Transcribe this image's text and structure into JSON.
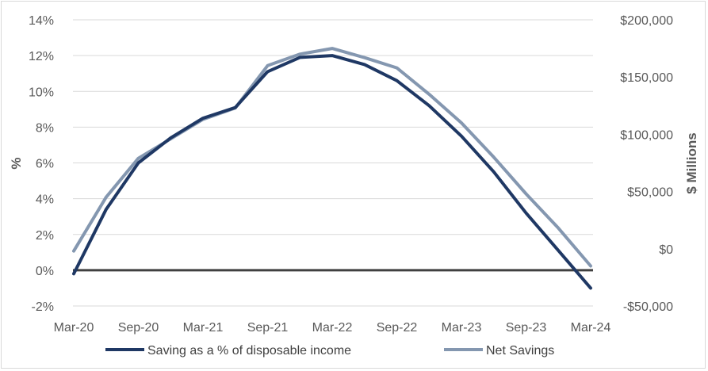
{
  "chart_data": {
    "type": "line",
    "title": "",
    "xlabel": "",
    "ylabel": "%",
    "y2label": "$ Millions",
    "categories": [
      "Mar-20",
      "Jun-20",
      "Sep-20",
      "Dec-20",
      "Mar-21",
      "Jun-21",
      "Sep-21",
      "Dec-21",
      "Mar-22",
      "Jun-22",
      "Sep-22",
      "Dec-22",
      "Mar-23",
      "Jun-23",
      "Sep-23",
      "Dec-23",
      "Mar-24"
    ],
    "x_tick_labels": [
      "Mar-20",
      "Sep-20",
      "Mar-21",
      "Sep-21",
      "Mar-22",
      "Sep-22",
      "Mar-23",
      "Sep-23",
      "Mar-24"
    ],
    "ylim": [
      -2,
      14
    ],
    "y_ticks": [
      -2,
      0,
      2,
      4,
      6,
      8,
      10,
      12,
      14
    ],
    "y_tick_labels": [
      "-2%",
      "0%",
      "2%",
      "4%",
      "6%",
      "8%",
      "10%",
      "12%",
      "14%"
    ],
    "y2lim": [
      -50000,
      200000
    ],
    "y2_ticks": [
      -50000,
      0,
      50000,
      100000,
      150000,
      200000
    ],
    "y2_tick_labels": [
      "-$50,000",
      "$0",
      "$50,000",
      "$100,000",
      "$150,000",
      "$200,000"
    ],
    "grid": true,
    "legend_position": "bottom",
    "series": [
      {
        "name": "Saving as a % of disposable income",
        "axis": "left",
        "color": "#1f3864",
        "values": [
          -0.2,
          3.4,
          6.0,
          7.4,
          8.5,
          9.1,
          11.1,
          11.9,
          12.0,
          11.5,
          10.6,
          9.2,
          7.5,
          5.5,
          3.2,
          1.1,
          -1.0
        ]
      },
      {
        "name": "Net Savings",
        "axis": "right",
        "color": "#8497b0",
        "values": [
          -2000,
          45000,
          79000,
          96000,
          113000,
          123000,
          160000,
          170000,
          175000,
          167000,
          158000,
          135000,
          110000,
          80000,
          48000,
          18000,
          -15000
        ]
      }
    ]
  }
}
